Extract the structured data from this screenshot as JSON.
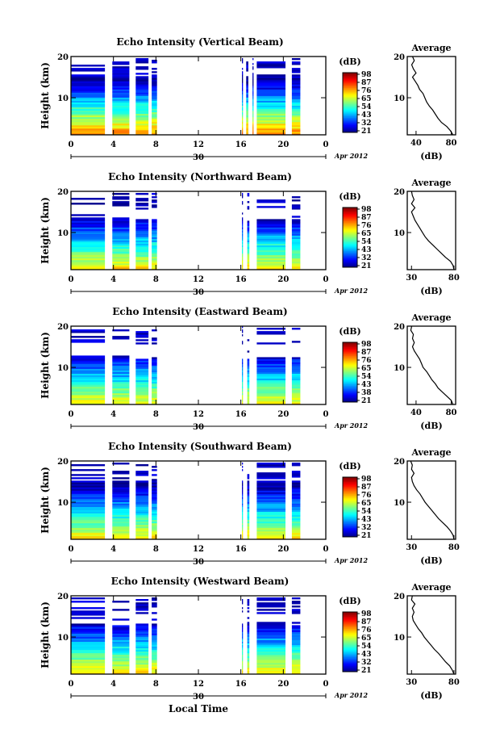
{
  "chart_data": [
    {
      "type": "heatmap",
      "title": "Echo Intensity (Vertical Beam)",
      "ylabel": "Height (km)",
      "xticks": [
        "0",
        "4",
        "8",
        "12",
        "16",
        "20",
        "0"
      ],
      "date_label": "30",
      "month_label": "Apr 2012",
      "ylim": [
        1,
        20
      ],
      "yticks": [
        "20",
        "10"
      ],
      "colorbar_unit": "(dB)",
      "colorbar_ticks": [
        "98",
        "87",
        "76",
        "65",
        "54",
        "43",
        "32",
        "21"
      ],
      "avg_title": "Average",
      "avg_xlabel": "(dB)",
      "avg_xticks": [
        "40",
        "80"
      ],
      "avg_xlim": [
        30,
        85
      ],
      "avg_yticks": [
        "20",
        "10"
      ],
      "data_blocks": [
        [
          0,
          3.2
        ],
        [
          3.9,
          5.5
        ],
        [
          6.1,
          7.3
        ],
        [
          7.6,
          8.1
        ],
        [
          16.1,
          16.2
        ],
        [
          16.5,
          16.7
        ],
        [
          17.1,
          17.2
        ],
        [
          17.5,
          20.2
        ],
        [
          20.8,
          21.6
        ]
      ],
      "top_height": 15,
      "surface_level": 80,
      "average_profile": [
        [
          1,
          82
        ],
        [
          2,
          79
        ],
        [
          3,
          75
        ],
        [
          4,
          69
        ],
        [
          5,
          65
        ],
        [
          6,
          62
        ],
        [
          7,
          59
        ],
        [
          8,
          55
        ],
        [
          9,
          52
        ],
        [
          10,
          50
        ],
        [
          11,
          48
        ],
        [
          12,
          44
        ],
        [
          13,
          42
        ],
        [
          14,
          39
        ],
        [
          15,
          36
        ],
        [
          16,
          40
        ],
        [
          17,
          37
        ],
        [
          18,
          35
        ],
        [
          19,
          38
        ],
        [
          20,
          36
        ]
      ]
    },
    {
      "type": "heatmap",
      "title": "Echo Intensity (Northward Beam)",
      "ylabel": "Height (km)",
      "xticks": [
        "0",
        "4",
        "8",
        "12",
        "16",
        "20",
        "0"
      ],
      "date_label": "30",
      "month_label": "Apr 2012",
      "ylim": [
        1,
        20
      ],
      "yticks": [
        "20",
        "10"
      ],
      "colorbar_unit": "(dB)",
      "colorbar_ticks": [
        "98",
        "87",
        "76",
        "65",
        "54",
        "43",
        "32",
        "21"
      ],
      "avg_title": "Average",
      "avg_xlabel": "(dB)",
      "avg_xticks": [
        "30",
        "80"
      ],
      "avg_xlim": [
        25,
        82
      ],
      "avg_yticks": [
        "20",
        "10"
      ],
      "data_blocks": [
        [
          0,
          3.2
        ],
        [
          3.9,
          5.5
        ],
        [
          6.1,
          7.3
        ],
        [
          7.6,
          8.1
        ],
        [
          16.1,
          16.2
        ],
        [
          16.6,
          16.8
        ],
        [
          17.5,
          20.2
        ],
        [
          20.8,
          21.6
        ]
      ],
      "top_height": 13,
      "surface_level": 72,
      "average_profile": [
        [
          1,
          80
        ],
        [
          2,
          79
        ],
        [
          3,
          76
        ],
        [
          4,
          70
        ],
        [
          5,
          65
        ],
        [
          6,
          60
        ],
        [
          7,
          55
        ],
        [
          8,
          50
        ],
        [
          9,
          46
        ],
        [
          10,
          43
        ],
        [
          11,
          40
        ],
        [
          12,
          37
        ],
        [
          13,
          34
        ],
        [
          14,
          32
        ],
        [
          15,
          30
        ],
        [
          16,
          34
        ],
        [
          17,
          30
        ],
        [
          18,
          33
        ],
        [
          19,
          31
        ],
        [
          20,
          30
        ]
      ]
    },
    {
      "type": "heatmap",
      "title": "Echo Intensity (Eastward Beam)",
      "ylabel": "Height (km)",
      "xticks": [
        "0",
        "4",
        "8",
        "12",
        "16",
        "20",
        "0"
      ],
      "date_label": "30",
      "month_label": "Apr 2012",
      "ylim": [
        1,
        20
      ],
      "yticks": [
        "20",
        "10"
      ],
      "colorbar_unit": "(dB)",
      "colorbar_ticks": [
        "98",
        "87",
        "76",
        "65",
        "54",
        "43",
        "38",
        "21"
      ],
      "avg_title": "Average",
      "avg_xlabel": "(dB)",
      "avg_xticks": [
        "40",
        "80"
      ],
      "avg_xlim": [
        30,
        85
      ],
      "avg_yticks": [
        "20",
        "10"
      ],
      "data_blocks": [
        [
          0,
          3.2
        ],
        [
          3.9,
          5.5
        ],
        [
          6.1,
          7.3
        ],
        [
          7.6,
          8.1
        ],
        [
          16.1,
          16.2
        ],
        [
          16.6,
          16.8
        ],
        [
          17.5,
          20.2
        ],
        [
          20.8,
          21.6
        ]
      ],
      "top_height": 12,
      "surface_level": 70,
      "average_profile": [
        [
          1,
          82
        ],
        [
          2,
          80
        ],
        [
          3,
          75
        ],
        [
          4,
          70
        ],
        [
          5,
          65
        ],
        [
          6,
          62
        ],
        [
          7,
          58
        ],
        [
          8,
          55
        ],
        [
          9,
          52
        ],
        [
          10,
          48
        ],
        [
          11,
          46
        ],
        [
          12,
          44
        ],
        [
          13,
          41
        ],
        [
          14,
          38
        ],
        [
          15,
          36
        ],
        [
          16,
          38
        ],
        [
          17,
          36
        ],
        [
          18,
          37
        ],
        [
          19,
          34
        ],
        [
          20,
          35
        ]
      ]
    },
    {
      "type": "heatmap",
      "title": "Echo Intensity (Southward Beam)",
      "ylabel": "Height (km)",
      "xticks": [
        "0",
        "4",
        "8",
        "12",
        "16",
        "20",
        "0"
      ],
      "date_label": "30",
      "month_label": "Apr 2012",
      "ylim": [
        1,
        20
      ],
      "yticks": [
        "20",
        "10"
      ],
      "colorbar_unit": "(dB)",
      "colorbar_ticks": [
        "98",
        "87",
        "76",
        "65",
        "54",
        "43",
        "32",
        "21"
      ],
      "avg_title": "Average",
      "avg_xlabel": "(dB)",
      "avg_xticks": [
        "30",
        "80"
      ],
      "avg_xlim": [
        25,
        82
      ],
      "avg_yticks": [
        "20",
        "10"
      ],
      "data_blocks": [
        [
          0,
          3.2
        ],
        [
          3.9,
          5.5
        ],
        [
          6.1,
          7.3
        ],
        [
          7.6,
          8.1
        ],
        [
          16.1,
          16.2
        ],
        [
          16.6,
          16.8
        ],
        [
          17.5,
          20.2
        ],
        [
          20.8,
          21.6
        ]
      ],
      "top_height": 15,
      "surface_level": 72,
      "average_profile": [
        [
          1,
          80
        ],
        [
          2,
          79
        ],
        [
          3,
          76
        ],
        [
          4,
          72
        ],
        [
          5,
          67
        ],
        [
          6,
          62
        ],
        [
          7,
          58
        ],
        [
          8,
          54
        ],
        [
          9,
          50
        ],
        [
          10,
          46
        ],
        [
          11,
          43
        ],
        [
          12,
          40
        ],
        [
          13,
          36
        ],
        [
          14,
          33
        ],
        [
          15,
          31
        ],
        [
          16,
          30
        ],
        [
          17,
          33
        ],
        [
          18,
          30
        ],
        [
          19,
          31
        ],
        [
          20,
          29
        ]
      ]
    },
    {
      "type": "heatmap",
      "title": "Echo Intensity (Westward Beam)",
      "ylabel": "Height (km)",
      "xticks": [
        "0",
        "4",
        "8",
        "12",
        "16",
        "20",
        "0"
      ],
      "date_label": "30",
      "month_label": "Apr 2012",
      "xlabel": "Local Time",
      "ylim": [
        1,
        20
      ],
      "yticks": [
        "20",
        "10"
      ],
      "colorbar_unit": "(dB)",
      "colorbar_ticks": [
        "98",
        "87",
        "76",
        "65",
        "54",
        "43",
        "32",
        "21"
      ],
      "avg_title": "Average",
      "avg_xlabel": "(dB)",
      "avg_xticks": [
        "30",
        "80"
      ],
      "avg_xlim": [
        25,
        82
      ],
      "avg_yticks": [
        "20",
        "10"
      ],
      "data_blocks": [
        [
          0,
          3.2
        ],
        [
          3.9,
          5.5
        ],
        [
          6.1,
          7.3
        ],
        [
          7.6,
          8.1
        ],
        [
          16.1,
          16.2
        ],
        [
          16.6,
          16.8
        ],
        [
          17.5,
          20.2
        ],
        [
          20.8,
          21.6
        ]
      ],
      "top_height": 13,
      "surface_level": 72,
      "average_profile": [
        [
          1,
          80
        ],
        [
          2,
          78
        ],
        [
          3,
          75
        ],
        [
          4,
          70
        ],
        [
          5,
          66
        ],
        [
          6,
          62
        ],
        [
          7,
          57
        ],
        [
          8,
          53
        ],
        [
          9,
          49
        ],
        [
          10,
          45
        ],
        [
          11,
          42
        ],
        [
          12,
          38
        ],
        [
          13,
          35
        ],
        [
          14,
          32
        ],
        [
          15,
          31
        ],
        [
          16,
          33
        ],
        [
          17,
          31
        ],
        [
          18,
          34
        ],
        [
          19,
          30
        ],
        [
          20,
          31
        ]
      ]
    }
  ]
}
